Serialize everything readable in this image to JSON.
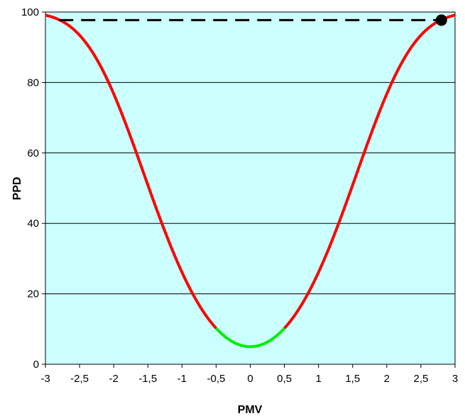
{
  "chart_data": {
    "type": "line",
    "title": "",
    "xlabel": "PMV",
    "ylabel": "PPD",
    "xlim": [
      -3,
      3
    ],
    "ylim": [
      0,
      100
    ],
    "x_ticks": [
      -3,
      -2.5,
      -2,
      -1.5,
      -1,
      -0.5,
      0,
      0.5,
      1,
      1.5,
      2,
      2.5,
      3
    ],
    "x_tick_labels": [
      "-3",
      "-2,5",
      "-2",
      "-1,5",
      "-1",
      "-0,5",
      "0",
      "0,5",
      "1",
      "1,5",
      "2",
      "2,5",
      "3"
    ],
    "y_ticks": [
      0,
      20,
      40,
      60,
      80,
      100
    ],
    "y_tick_labels": [
      "0",
      "20",
      "40",
      "60",
      "80",
      "100"
    ],
    "grid": "horizontal",
    "legend": "none",
    "background_color": "#ccffff",
    "series": [
      {
        "color": "#ff0000",
        "segment": "outside comfort range",
        "x": [
          -3,
          -2.75,
          -2.5,
          -2.25,
          -2,
          -1.75,
          -1.5,
          -1.25,
          -1,
          -0.75,
          -0.5
        ],
        "y": [
          99.1,
          96.8,
          93.0,
          86.6,
          76.8,
          64.4,
          50.6,
          36.6,
          26.1,
          16.8,
          10.2
        ]
      },
      {
        "color": "#00ee00",
        "segment": "comfort range",
        "x": [
          -0.5,
          -0.4,
          -0.3,
          -0.2,
          -0.1,
          0,
          0.1,
          0.2,
          0.3,
          0.4,
          0.5
        ],
        "y": [
          10.2,
          8.3,
          6.9,
          5.8,
          5.2,
          5.0,
          5.2,
          5.8,
          6.9,
          8.3,
          10.2
        ]
      },
      {
        "color": "#ff0000",
        "segment": "outside comfort range",
        "x": [
          0.5,
          0.75,
          1,
          1.25,
          1.5,
          1.75,
          2,
          2.25,
          2.5,
          2.75,
          3
        ],
        "y": [
          10.2,
          16.8,
          26.1,
          36.6,
          50.6,
          64.4,
          76.8,
          86.6,
          93.0,
          96.8,
          99.1
        ]
      }
    ],
    "reference_line": {
      "y": 97.7,
      "x_from": -2.8,
      "x_to": 2.8,
      "style": "dashed",
      "color": "#000000"
    },
    "marker": {
      "x": 2.8,
      "y": 97.7,
      "color": "#000000"
    }
  }
}
